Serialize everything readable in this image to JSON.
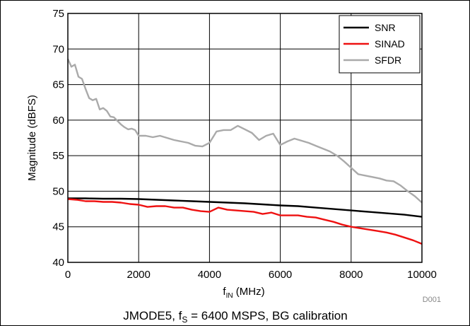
{
  "chart_data": {
    "type": "line",
    "xlabel": {
      "main": "f",
      "sub": "IN",
      "rest": " (MHz)"
    },
    "ylabel": "Magnitude (dBFS)",
    "xlim": [
      0,
      10000
    ],
    "ylim": [
      40,
      75
    ],
    "xticks": [
      0,
      2000,
      4000,
      6000,
      8000,
      10000
    ],
    "yticks": [
      40,
      45,
      50,
      55,
      60,
      65,
      70,
      75
    ],
    "grid": true,
    "legend_position": "top-right",
    "figure_id": "D001",
    "caption": {
      "pre": "JMODE5, f",
      "sub": "S",
      "post": " = 6400 MSPS, BG calibration"
    },
    "series": [
      {
        "name": "SNR",
        "color": "#000000",
        "x": [
          0,
          500,
          1000,
          1500,
          2000,
          2500,
          3000,
          3500,
          4000,
          4500,
          5000,
          5500,
          6000,
          6500,
          7000,
          7500,
          8000,
          8500,
          9000,
          9500,
          10000
        ],
        "y": [
          49.0,
          49.0,
          48.95,
          48.95,
          48.9,
          48.8,
          48.7,
          48.6,
          48.5,
          48.4,
          48.3,
          48.15,
          48.0,
          47.9,
          47.7,
          47.5,
          47.3,
          47.1,
          46.9,
          46.7,
          46.4
        ]
      },
      {
        "name": "SINAD",
        "color": "#ee1111",
        "x": [
          0,
          250,
          500,
          750,
          1000,
          1250,
          1500,
          1750,
          2000,
          2250,
          2500,
          2750,
          3000,
          3250,
          3500,
          3750,
          4000,
          4250,
          4500,
          4750,
          5000,
          5250,
          5500,
          5750,
          6000,
          6250,
          6500,
          6750,
          7000,
          7250,
          7500,
          7750,
          8000,
          8250,
          8500,
          8750,
          9000,
          9250,
          9500,
          9750,
          10000
        ],
        "y": [
          48.9,
          48.8,
          48.6,
          48.6,
          48.5,
          48.5,
          48.4,
          48.2,
          48.1,
          47.8,
          47.9,
          47.9,
          47.7,
          47.7,
          47.4,
          47.2,
          47.1,
          47.7,
          47.4,
          47.3,
          47.2,
          47.1,
          46.8,
          47.0,
          46.6,
          46.6,
          46.6,
          46.4,
          46.3,
          46.0,
          45.7,
          45.3,
          45.0,
          44.8,
          44.6,
          44.4,
          44.2,
          43.9,
          43.5,
          43.1,
          42.6
        ]
      },
      {
        "name": "SFDR",
        "color": "#aaaaaa",
        "x": [
          0,
          100,
          200,
          300,
          400,
          500,
          600,
          700,
          800,
          900,
          1000,
          1100,
          1200,
          1300,
          1400,
          1500,
          1600,
          1700,
          1800,
          1900,
          2000,
          2200,
          2400,
          2600,
          2800,
          3000,
          3200,
          3400,
          3600,
          3800,
          4000,
          4200,
          4400,
          4600,
          4800,
          5000,
          5200,
          5400,
          5600,
          5800,
          6000,
          6200,
          6400,
          6600,
          6800,
          7000,
          7200,
          7400,
          7600,
          7800,
          8000,
          8200,
          8400,
          8600,
          8800,
          9000,
          9200,
          9400,
          9600,
          9800,
          10000
        ],
        "y": [
          68.6,
          67.5,
          67.8,
          66.1,
          65.8,
          64.4,
          63.1,
          62.8,
          63.0,
          61.5,
          61.7,
          61.3,
          60.5,
          60.4,
          59.9,
          59.4,
          59.0,
          58.7,
          58.8,
          58.6,
          57.8,
          57.8,
          57.6,
          57.8,
          57.5,
          57.2,
          57.0,
          56.8,
          56.4,
          56.3,
          56.8,
          58.4,
          58.6,
          58.6,
          59.2,
          58.7,
          58.2,
          57.2,
          57.8,
          58.1,
          56.5,
          57.0,
          57.4,
          57.1,
          56.8,
          56.4,
          56.0,
          55.6,
          55.0,
          54.2,
          53.3,
          52.4,
          52.2,
          52.0,
          51.8,
          51.5,
          51.4,
          50.8,
          50.0,
          49.3,
          48.4
        ]
      }
    ]
  }
}
